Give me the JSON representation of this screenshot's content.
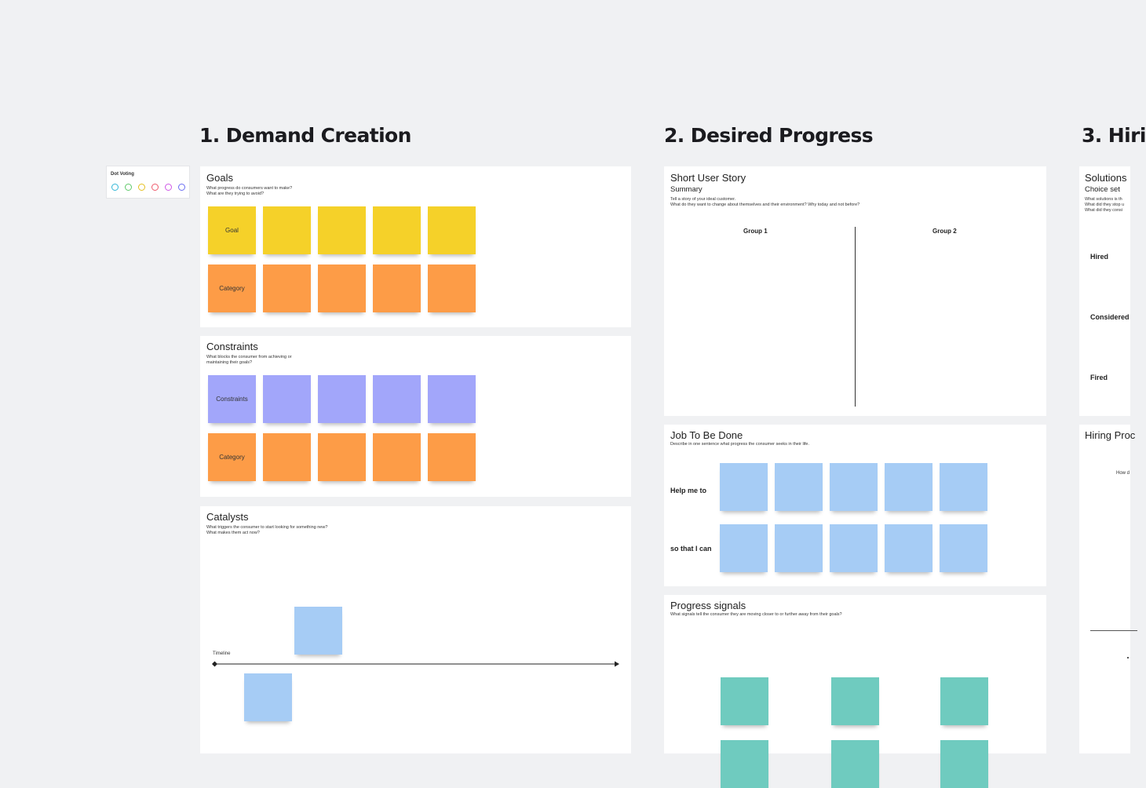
{
  "sections": {
    "demand_creation": "1. Demand Creation",
    "desired_progress": "2. Desired Progress",
    "hiring": "3. Hiri"
  },
  "dot_voting": {
    "title": "Dot Voting",
    "dot_colors": [
      "#33b6d6",
      "#5fc96a",
      "#e5c020",
      "#ef5a6b",
      "#cf58e6",
      "#6b6ef2"
    ]
  },
  "goals": {
    "title": "Goals",
    "description": "What progress do consumers want to make?\nWhat are they trying to avoid?",
    "goal_label": "Goal",
    "category_label": "Category"
  },
  "constraints": {
    "title": "Constraints",
    "description": "What blocks the consumer from achieving or\nmaintaining their goals?",
    "constraints_label": "Constraints",
    "category_label": "Category"
  },
  "catalysts": {
    "title": "Catalysts",
    "description": "What triggers the consumer to start looking for something new?\nWhat makes them act now?",
    "timeline_label": "Timeline"
  },
  "short_user_story": {
    "title": "Short User Story",
    "subtitle": "Summary",
    "description": "Tell a story of your ideal customer.\nWhat do they want to change about themselves and their environment? Why today and not before?",
    "group1": "Group 1",
    "group2": "Group 2"
  },
  "job_to_be_done": {
    "title": "Job To Be Done",
    "description": "Describe in one sentence what progress the consumer seeks in their life.",
    "row1_label": "Help me to",
    "row2_label": "so that I can"
  },
  "progress_signals": {
    "title": "Progress signals",
    "description": "What signals tell the consumer they are moving closer to or further away from their goals?"
  },
  "solutions": {
    "title": "Solutions",
    "subtitle": "Choice set",
    "description": "What solutions is th\nWhat did they stop u\nWhat did they consi",
    "hired": "Hired",
    "considered": "Considered",
    "fired": "Fired"
  },
  "hiring_process": {
    "title": "Hiring Proc",
    "partial_text": "How d"
  }
}
